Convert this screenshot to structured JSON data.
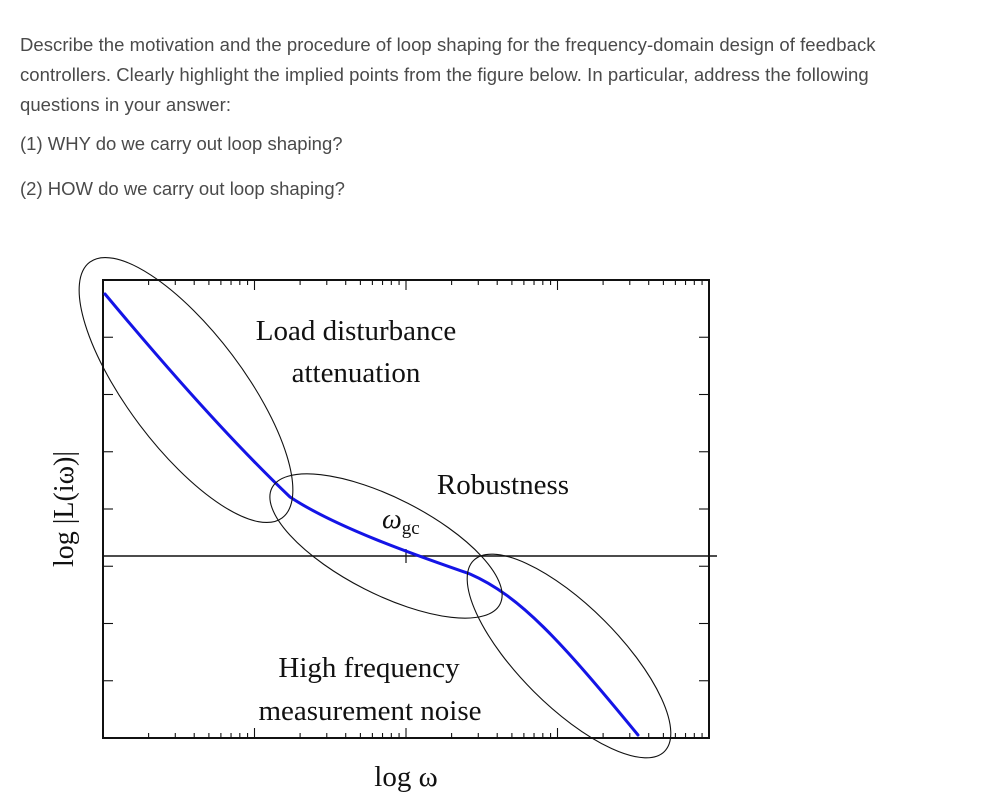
{
  "question": {
    "intro": "Describe the motivation and the procedure of loop shaping for the frequency-domain design of feedback controllers. Clearly highlight the implied points from the figure below. In particular, address the following questions in your answer:",
    "item1": "(1) WHY do we carry out loop shaping?",
    "item2": "(2) HOW do we carry out loop shaping?"
  },
  "figure": {
    "label_load_1": "Load disturbance",
    "label_load_2": "attenuation",
    "label_robustness": "Robustness",
    "label_omega_gc": "ω",
    "label_omega_gc_sub": "gc",
    "label_noise_1": "High frequency",
    "label_noise_2": "measurement noise",
    "xlabel": "log ω",
    "ylabel": "log |L(iω)|",
    "curve_color": "#1414e6"
  }
}
